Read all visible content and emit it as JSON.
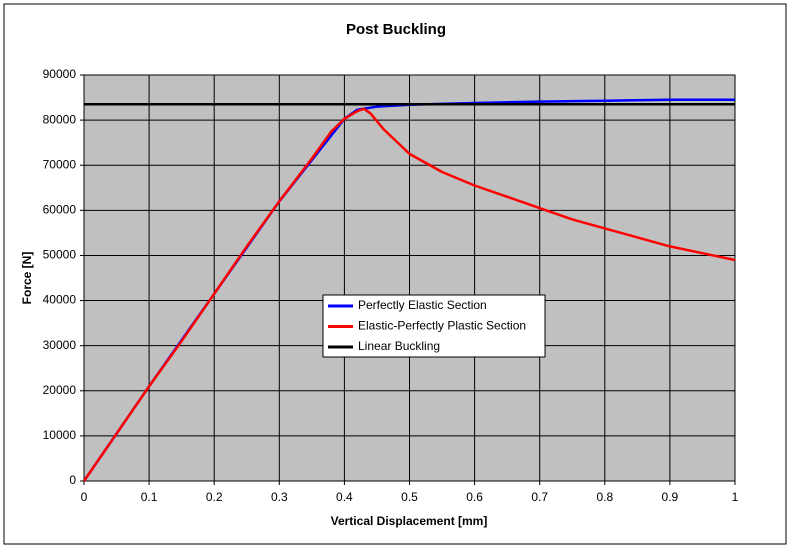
{
  "chart_data": {
    "type": "line",
    "title": "Post Buckling",
    "x_label": "Vertical Displacement [mm]",
    "y_label": "Force [N]",
    "xlim": [
      0,
      1
    ],
    "xticks": [
      0,
      0.1,
      0.2,
      0.3,
      0.4,
      0.5,
      0.6,
      0.7,
      0.8,
      0.9,
      1
    ],
    "ylim": [
      0,
      90000
    ],
    "yticks": [
      0,
      10000,
      20000,
      30000,
      40000,
      50000,
      60000,
      70000,
      80000,
      90000
    ],
    "grid": true,
    "legend": "center",
    "series": [
      {
        "name": "Perfectly Elastic Section",
        "color": "#0000ff",
        "x": [
          0,
          0.1,
          0.2,
          0.3,
          0.4,
          0.42,
          0.45,
          0.5,
          0.6,
          0.7,
          0.8,
          0.9,
          1
        ],
        "values": [
          0,
          21000,
          41500,
          62000,
          80300,
          82300,
          83000,
          83400,
          83800,
          84100,
          84300,
          84500,
          84500
        ]
      },
      {
        "name": "Elastic-Perfectly Plastic Section",
        "color": "#ff0000",
        "x": [
          0,
          0.05,
          0.1,
          0.15,
          0.2,
          0.25,
          0.3,
          0.35,
          0.38,
          0.4,
          0.42,
          0.43,
          0.44,
          0.46,
          0.5,
          0.55,
          0.6,
          0.65,
          0.7,
          0.75,
          0.8,
          0.85,
          0.9,
          0.95,
          1
        ],
        "values": [
          0,
          10500,
          21000,
          31000,
          41500,
          52000,
          62000,
          71500,
          77500,
          80300,
          82000,
          82500,
          81500,
          78000,
          72500,
          68500,
          65500,
          63000,
          60500,
          58000,
          56000,
          54000,
          52000,
          50500,
          49000
        ]
      },
      {
        "name": "Linear Buckling",
        "color": "#000000",
        "x": [
          0,
          1
        ],
        "values": [
          83500,
          83500
        ]
      }
    ]
  }
}
